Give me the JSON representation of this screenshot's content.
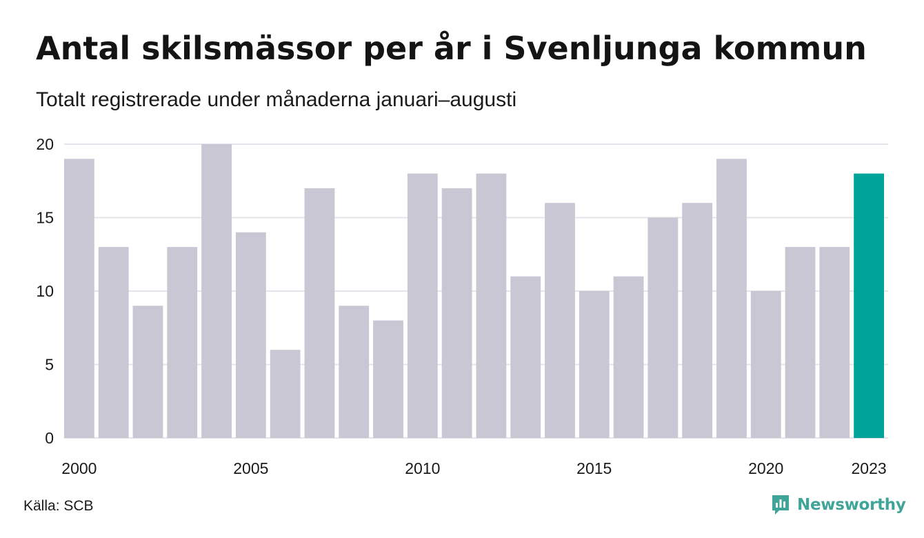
{
  "header": {
    "title": "Antal skilsmässor per år i Svenljunga kommun",
    "subtitle": "Totalt registrerade under månaderna januari–augusti"
  },
  "footer": {
    "source": "Källa: SCB",
    "brand": "Newsworthy"
  },
  "colors": {
    "bar": "#c8c7d3",
    "highlight": "#00a398",
    "grid": "#e4e4ea",
    "brand": "#3fa598"
  },
  "icons": {
    "brand_logo": "newsworthy-logo-icon"
  },
  "chart_data": {
    "type": "bar",
    "title": "Antal skilsmässor per år i Svenljunga kommun",
    "subtitle": "Totalt registrerade under månaderna januari–augusti",
    "xlabel": "",
    "ylabel": "",
    "categories": [
      "2000",
      "2001",
      "2002",
      "2003",
      "2004",
      "2005",
      "2006",
      "2007",
      "2008",
      "2009",
      "2010",
      "2011",
      "2012",
      "2013",
      "2014",
      "2015",
      "2016",
      "2017",
      "2018",
      "2019",
      "2020",
      "2021",
      "2022",
      "2023"
    ],
    "values": [
      19,
      13,
      9,
      13,
      20,
      14,
      6,
      17,
      9,
      8,
      18,
      17,
      18,
      11,
      16,
      10,
      11,
      15,
      16,
      19,
      10,
      13,
      13,
      18
    ],
    "highlight_category": "2023",
    "x_tick_labels": [
      "2000",
      "2005",
      "2010",
      "2015",
      "2020",
      "2023"
    ],
    "y_ticks": [
      0,
      5,
      10,
      15,
      20
    ],
    "ylim": [
      0,
      20
    ],
    "grid": true,
    "legend": "none"
  }
}
